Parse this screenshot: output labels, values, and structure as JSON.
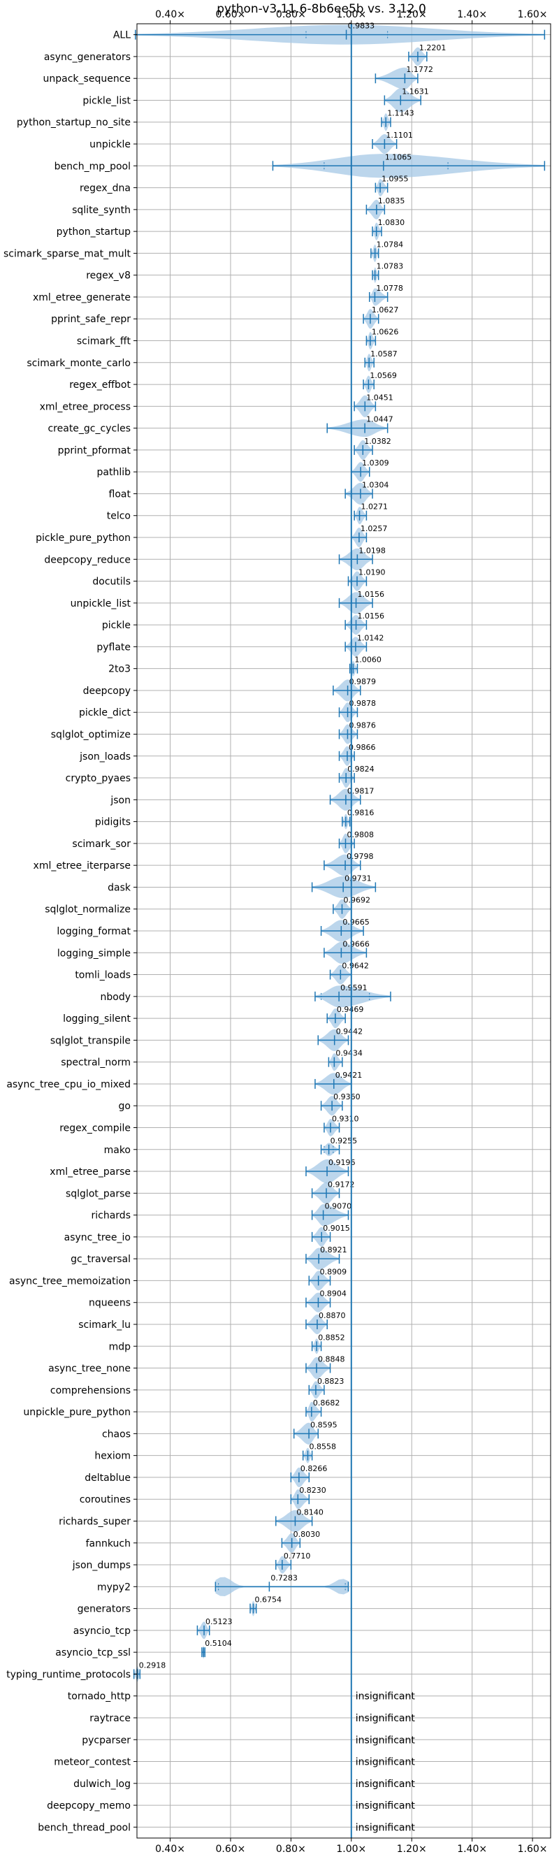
{
  "chart_data": {
    "type": "violin",
    "title": "python-v3.11.6-8b6ee5b vs. 3.12.0",
    "xlim": [
      0.29,
      1.66
    ],
    "x_ticks": [
      0.4,
      0.6,
      0.8,
      1.0,
      1.2,
      1.4,
      1.6
    ],
    "x_tick_labels": [
      "0.40×",
      "0.60×",
      "0.80×",
      "1.00×",
      "1.20×",
      "1.40×",
      "1.60×"
    ],
    "reference_line": 1.0,
    "grid": true,
    "colors": {
      "accent": "#1f77b4",
      "violin": "#a6c8e6",
      "grid": "#b0b0b0"
    },
    "insignificant_label": "insignificant",
    "benchmarks": [
      {
        "name": "ALL",
        "value": 0.9833,
        "label": "0.9833",
        "min": 0.285,
        "max": 1.64,
        "q1": 0.85,
        "q3": 1.12,
        "w": 0.45
      },
      {
        "name": "async_generators",
        "value": 1.2201,
        "label": "1.2201",
        "min": 1.19,
        "max": 1.25,
        "w": 0.42
      },
      {
        "name": "unpack_sequence",
        "value": 1.1772,
        "label": "1.1772",
        "min": 1.08,
        "max": 1.22,
        "w": 0.5
      },
      {
        "name": "pickle_list",
        "value": 1.1631,
        "label": "1.1631",
        "min": 1.11,
        "max": 1.23,
        "w": 0.55
      },
      {
        "name": "python_startup_no_site",
        "value": 1.1143,
        "label": "1.1143",
        "min": 1.1,
        "max": 1.13,
        "w": 0.4
      },
      {
        "name": "unpickle",
        "value": 1.1101,
        "label": "1.1101",
        "min": 1.07,
        "max": 1.15,
        "w": 0.45
      },
      {
        "name": "bench_mp_pool",
        "value": 1.1065,
        "label": "1.1065",
        "min": 0.74,
        "max": 1.64,
        "q1": 0.91,
        "q3": 1.32,
        "w": 0.55
      },
      {
        "name": "regex_dna",
        "value": 1.0955,
        "label": "1.0955",
        "min": 1.08,
        "max": 1.12,
        "w": 0.4
      },
      {
        "name": "sqlite_synth",
        "value": 1.0835,
        "label": "1.0835",
        "min": 1.05,
        "max": 1.11,
        "w": 0.45
      },
      {
        "name": "python_startup",
        "value": 1.083,
        "label": "1.0830",
        "min": 1.07,
        "max": 1.1,
        "w": 0.4
      },
      {
        "name": "scimark_sparse_mat_mult",
        "value": 1.0784,
        "label": "1.0784",
        "min": 1.065,
        "max": 1.09,
        "w": 0.4
      },
      {
        "name": "regex_v8",
        "value": 1.0783,
        "label": "1.0783",
        "min": 1.07,
        "max": 1.09,
        "w": 0.35
      },
      {
        "name": "xml_etree_generate",
        "value": 1.0778,
        "label": "1.0778",
        "min": 1.06,
        "max": 1.12,
        "w": 0.4
      },
      {
        "name": "pprint_safe_repr",
        "value": 1.0627,
        "label": "1.0627",
        "min": 1.04,
        "max": 1.09,
        "w": 0.45
      },
      {
        "name": "scimark_fft",
        "value": 1.0626,
        "label": "1.0626",
        "min": 1.05,
        "max": 1.08,
        "w": 0.4
      },
      {
        "name": "scimark_monte_carlo",
        "value": 1.0587,
        "label": "1.0587",
        "min": 1.045,
        "max": 1.075,
        "w": 0.4
      },
      {
        "name": "regex_effbot",
        "value": 1.0569,
        "label": "1.0569",
        "min": 1.04,
        "max": 1.075,
        "w": 0.4
      },
      {
        "name": "xml_etree_process",
        "value": 1.0451,
        "label": "1.0451",
        "min": 1.01,
        "max": 1.08,
        "w": 0.5
      },
      {
        "name": "create_gc_cycles",
        "value": 1.0447,
        "label": "1.0447",
        "min": 0.92,
        "max": 1.12,
        "w": 0.4
      },
      {
        "name": "pprint_pformat",
        "value": 1.0382,
        "label": "1.0382",
        "min": 1.01,
        "max": 1.07,
        "w": 0.45
      },
      {
        "name": "pathlib",
        "value": 1.0309,
        "label": "1.0309",
        "min": 1.0,
        "max": 1.06,
        "w": 0.45
      },
      {
        "name": "float",
        "value": 1.0304,
        "label": "1.0304",
        "min": 0.98,
        "max": 1.07,
        "w": 0.5
      },
      {
        "name": "telco",
        "value": 1.0271,
        "label": "1.0271",
        "min": 1.01,
        "max": 1.05,
        "w": 0.4
      },
      {
        "name": "pickle_pure_python",
        "value": 1.0257,
        "label": "1.0257",
        "min": 1.0,
        "max": 1.05,
        "w": 0.45
      },
      {
        "name": "deepcopy_reduce",
        "value": 1.0198,
        "label": "1.0198",
        "min": 0.96,
        "max": 1.07,
        "w": 0.5
      },
      {
        "name": "docutils",
        "value": 1.019,
        "label": "1.0190",
        "min": 0.99,
        "max": 1.05,
        "w": 0.45
      },
      {
        "name": "unpickle_list",
        "value": 1.0156,
        "label": "1.0156",
        "min": 0.96,
        "max": 1.07,
        "w": 0.5
      },
      {
        "name": "pickle",
        "value": 1.0156,
        "label": "1.0156",
        "min": 0.98,
        "max": 1.05,
        "w": 0.45
      },
      {
        "name": "pyflate",
        "value": 1.0142,
        "label": "1.0142",
        "min": 0.98,
        "max": 1.05,
        "w": 0.45
      },
      {
        "name": "2to3",
        "value": 1.006,
        "label": "1.0060",
        "min": 0.995,
        "max": 1.02,
        "w": 0.35
      },
      {
        "name": "deepcopy",
        "value": 0.9879,
        "label": "0.9879",
        "min": 0.94,
        "max": 1.03,
        "w": 0.5
      },
      {
        "name": "pickle_dict",
        "value": 0.9878,
        "label": "0.9878",
        "min": 0.96,
        "max": 1.02,
        "w": 0.45
      },
      {
        "name": "sqlglot_optimize",
        "value": 0.9876,
        "label": "0.9876",
        "min": 0.96,
        "max": 1.02,
        "w": 0.45
      },
      {
        "name": "json_loads",
        "value": 0.9866,
        "label": "0.9866",
        "min": 0.96,
        "max": 1.01,
        "w": 0.45
      },
      {
        "name": "crypto_pyaes",
        "value": 0.9824,
        "label": "0.9824",
        "min": 0.96,
        "max": 1.01,
        "w": 0.45
      },
      {
        "name": "json",
        "value": 0.9817,
        "label": "0.9817",
        "min": 0.93,
        "max": 1.03,
        "w": 0.5
      },
      {
        "name": "pidigits",
        "value": 0.9816,
        "label": "0.9816",
        "min": 0.97,
        "max": 0.995,
        "w": 0.35
      },
      {
        "name": "scimark_sor",
        "value": 0.9808,
        "label": "0.9808",
        "min": 0.96,
        "max": 1.01,
        "w": 0.45
      },
      {
        "name": "xml_etree_iterparse",
        "value": 0.9798,
        "label": "0.9798",
        "min": 0.91,
        "max": 1.03,
        "w": 0.5
      },
      {
        "name": "dask",
        "value": 0.9731,
        "label": "0.9731",
        "min": 0.87,
        "max": 1.08,
        "w": 0.5
      },
      {
        "name": "sqlglot_normalize",
        "value": 0.9692,
        "label": "0.9692",
        "min": 0.94,
        "max": 1.0,
        "w": 0.45
      },
      {
        "name": "logging_format",
        "value": 0.9665,
        "label": "0.9665",
        "min": 0.9,
        "max": 1.04,
        "w": 0.5
      },
      {
        "name": "logging_simple",
        "value": 0.9666,
        "label": "0.9666",
        "min": 0.91,
        "max": 1.05,
        "w": 0.5
      },
      {
        "name": "tomli_loads",
        "value": 0.9642,
        "label": "0.9642",
        "min": 0.93,
        "max": 1.0,
        "w": 0.45
      },
      {
        "name": "nbody",
        "value": 0.9591,
        "label": "0.9591",
        "min": 0.88,
        "max": 1.13,
        "q1": 0.9,
        "q3": 1.06,
        "w": 0.5
      },
      {
        "name": "logging_silent",
        "value": 0.9469,
        "label": "0.9469",
        "min": 0.92,
        "max": 0.98,
        "w": 0.45
      },
      {
        "name": "sqlglot_transpile",
        "value": 0.9442,
        "label": "0.9442",
        "min": 0.89,
        "max": 0.99,
        "w": 0.5
      },
      {
        "name": "spectral_norm",
        "value": 0.9434,
        "label": "0.9434",
        "min": 0.925,
        "max": 0.97,
        "w": 0.4
      },
      {
        "name": "async_tree_cpu_io_mixed",
        "value": 0.9421,
        "label": "0.9421",
        "min": 0.88,
        "max": 1.0,
        "w": 0.5
      },
      {
        "name": "go",
        "value": 0.936,
        "label": "0.9360",
        "min": 0.9,
        "max": 0.97,
        "w": 0.45
      },
      {
        "name": "regex_compile",
        "value": 0.931,
        "label": "0.9310",
        "min": 0.91,
        "max": 0.96,
        "w": 0.4
      },
      {
        "name": "mako",
        "value": 0.9255,
        "label": "0.9255",
        "min": 0.9,
        "max": 0.96,
        "q1": 0.91,
        "q3": 0.94,
        "w": 0.3
      },
      {
        "name": "xml_etree_parse",
        "value": 0.9196,
        "label": "0.9196",
        "min": 0.85,
        "max": 0.99,
        "w": 0.55
      },
      {
        "name": "sqlglot_parse",
        "value": 0.9172,
        "label": "0.9172",
        "min": 0.87,
        "max": 0.96,
        "w": 0.5
      },
      {
        "name": "richards",
        "value": 0.907,
        "label": "0.9070",
        "min": 0.87,
        "max": 0.99,
        "w": 0.5
      },
      {
        "name": "async_tree_io",
        "value": 0.9015,
        "label": "0.9015",
        "min": 0.87,
        "max": 0.93,
        "w": 0.45
      },
      {
        "name": "gc_traversal",
        "value": 0.8921,
        "label": "0.8921",
        "min": 0.85,
        "max": 0.96,
        "w": 0.5
      },
      {
        "name": "async_tree_memoization",
        "value": 0.8909,
        "label": "0.8909",
        "min": 0.86,
        "max": 0.93,
        "w": 0.45
      },
      {
        "name": "nqueens",
        "value": 0.8904,
        "label": "0.8904",
        "min": 0.85,
        "max": 0.93,
        "w": 0.45
      },
      {
        "name": "scimark_lu",
        "value": 0.887,
        "label": "0.8870",
        "min": 0.85,
        "max": 0.92,
        "w": 0.45
      },
      {
        "name": "mdp",
        "value": 0.8852,
        "label": "0.8852",
        "min": 0.87,
        "max": 0.9,
        "w": 0.35
      },
      {
        "name": "async_tree_none",
        "value": 0.8848,
        "label": "0.8848",
        "min": 0.85,
        "max": 0.93,
        "w": 0.5
      },
      {
        "name": "comprehensions",
        "value": 0.8823,
        "label": "0.8823",
        "min": 0.86,
        "max": 0.91,
        "w": 0.4
      },
      {
        "name": "unpickle_pure_python",
        "value": 0.8682,
        "label": "0.8682",
        "min": 0.85,
        "max": 0.9,
        "w": 0.45
      },
      {
        "name": "chaos",
        "value": 0.8595,
        "label": "0.8595",
        "min": 0.81,
        "max": 0.89,
        "w": 0.5
      },
      {
        "name": "hexiom",
        "value": 0.8558,
        "label": "0.8558",
        "min": 0.84,
        "max": 0.87,
        "w": 0.35
      },
      {
        "name": "deltablue",
        "value": 0.8266,
        "label": "0.8266",
        "min": 0.8,
        "max": 0.86,
        "w": 0.45
      },
      {
        "name": "coroutines",
        "value": 0.823,
        "label": "0.8230",
        "min": 0.8,
        "max": 0.86,
        "w": 0.45
      },
      {
        "name": "richards_super",
        "value": 0.814,
        "label": "0.8140",
        "min": 0.75,
        "max": 0.87,
        "w": 0.5
      },
      {
        "name": "fannkuch",
        "value": 0.803,
        "label": "0.8030",
        "min": 0.77,
        "max": 0.83,
        "w": 0.45
      },
      {
        "name": "json_dumps",
        "value": 0.771,
        "label": "0.7710",
        "min": 0.75,
        "max": 0.8,
        "w": 0.4
      },
      {
        "name": "mypy2",
        "value": 0.7283,
        "label": "0.7283",
        "min": 0.55,
        "max": 0.99,
        "q1": 0.56,
        "q3": 0.98,
        "w": 0.45,
        "bimodal": true
      },
      {
        "name": "generators",
        "value": 0.6754,
        "label": "0.6754",
        "min": 0.665,
        "max": 0.685,
        "w": 0.35
      },
      {
        "name": "asyncio_tcp",
        "value": 0.5123,
        "label": "0.5123",
        "min": 0.49,
        "max": 0.53,
        "w": 0.4
      },
      {
        "name": "asyncio_tcp_ssl",
        "value": 0.5104,
        "label": "0.5104",
        "min": 0.505,
        "max": 0.515,
        "w": 0.3
      },
      {
        "name": "typing_runtime_protocols",
        "value": 0.2918,
        "label": "0.2918",
        "min": 0.28,
        "max": 0.3,
        "w": 0.35
      },
      {
        "name": "tornado_http",
        "value": null,
        "label": null
      },
      {
        "name": "raytrace",
        "value": null,
        "label": null
      },
      {
        "name": "pycparser",
        "value": null,
        "label": null
      },
      {
        "name": "meteor_contest",
        "value": null,
        "label": null
      },
      {
        "name": "dulwich_log",
        "value": null,
        "label": null
      },
      {
        "name": "deepcopy_memo",
        "value": null,
        "label": null
      },
      {
        "name": "bench_thread_pool",
        "value": null,
        "label": null
      }
    ]
  }
}
